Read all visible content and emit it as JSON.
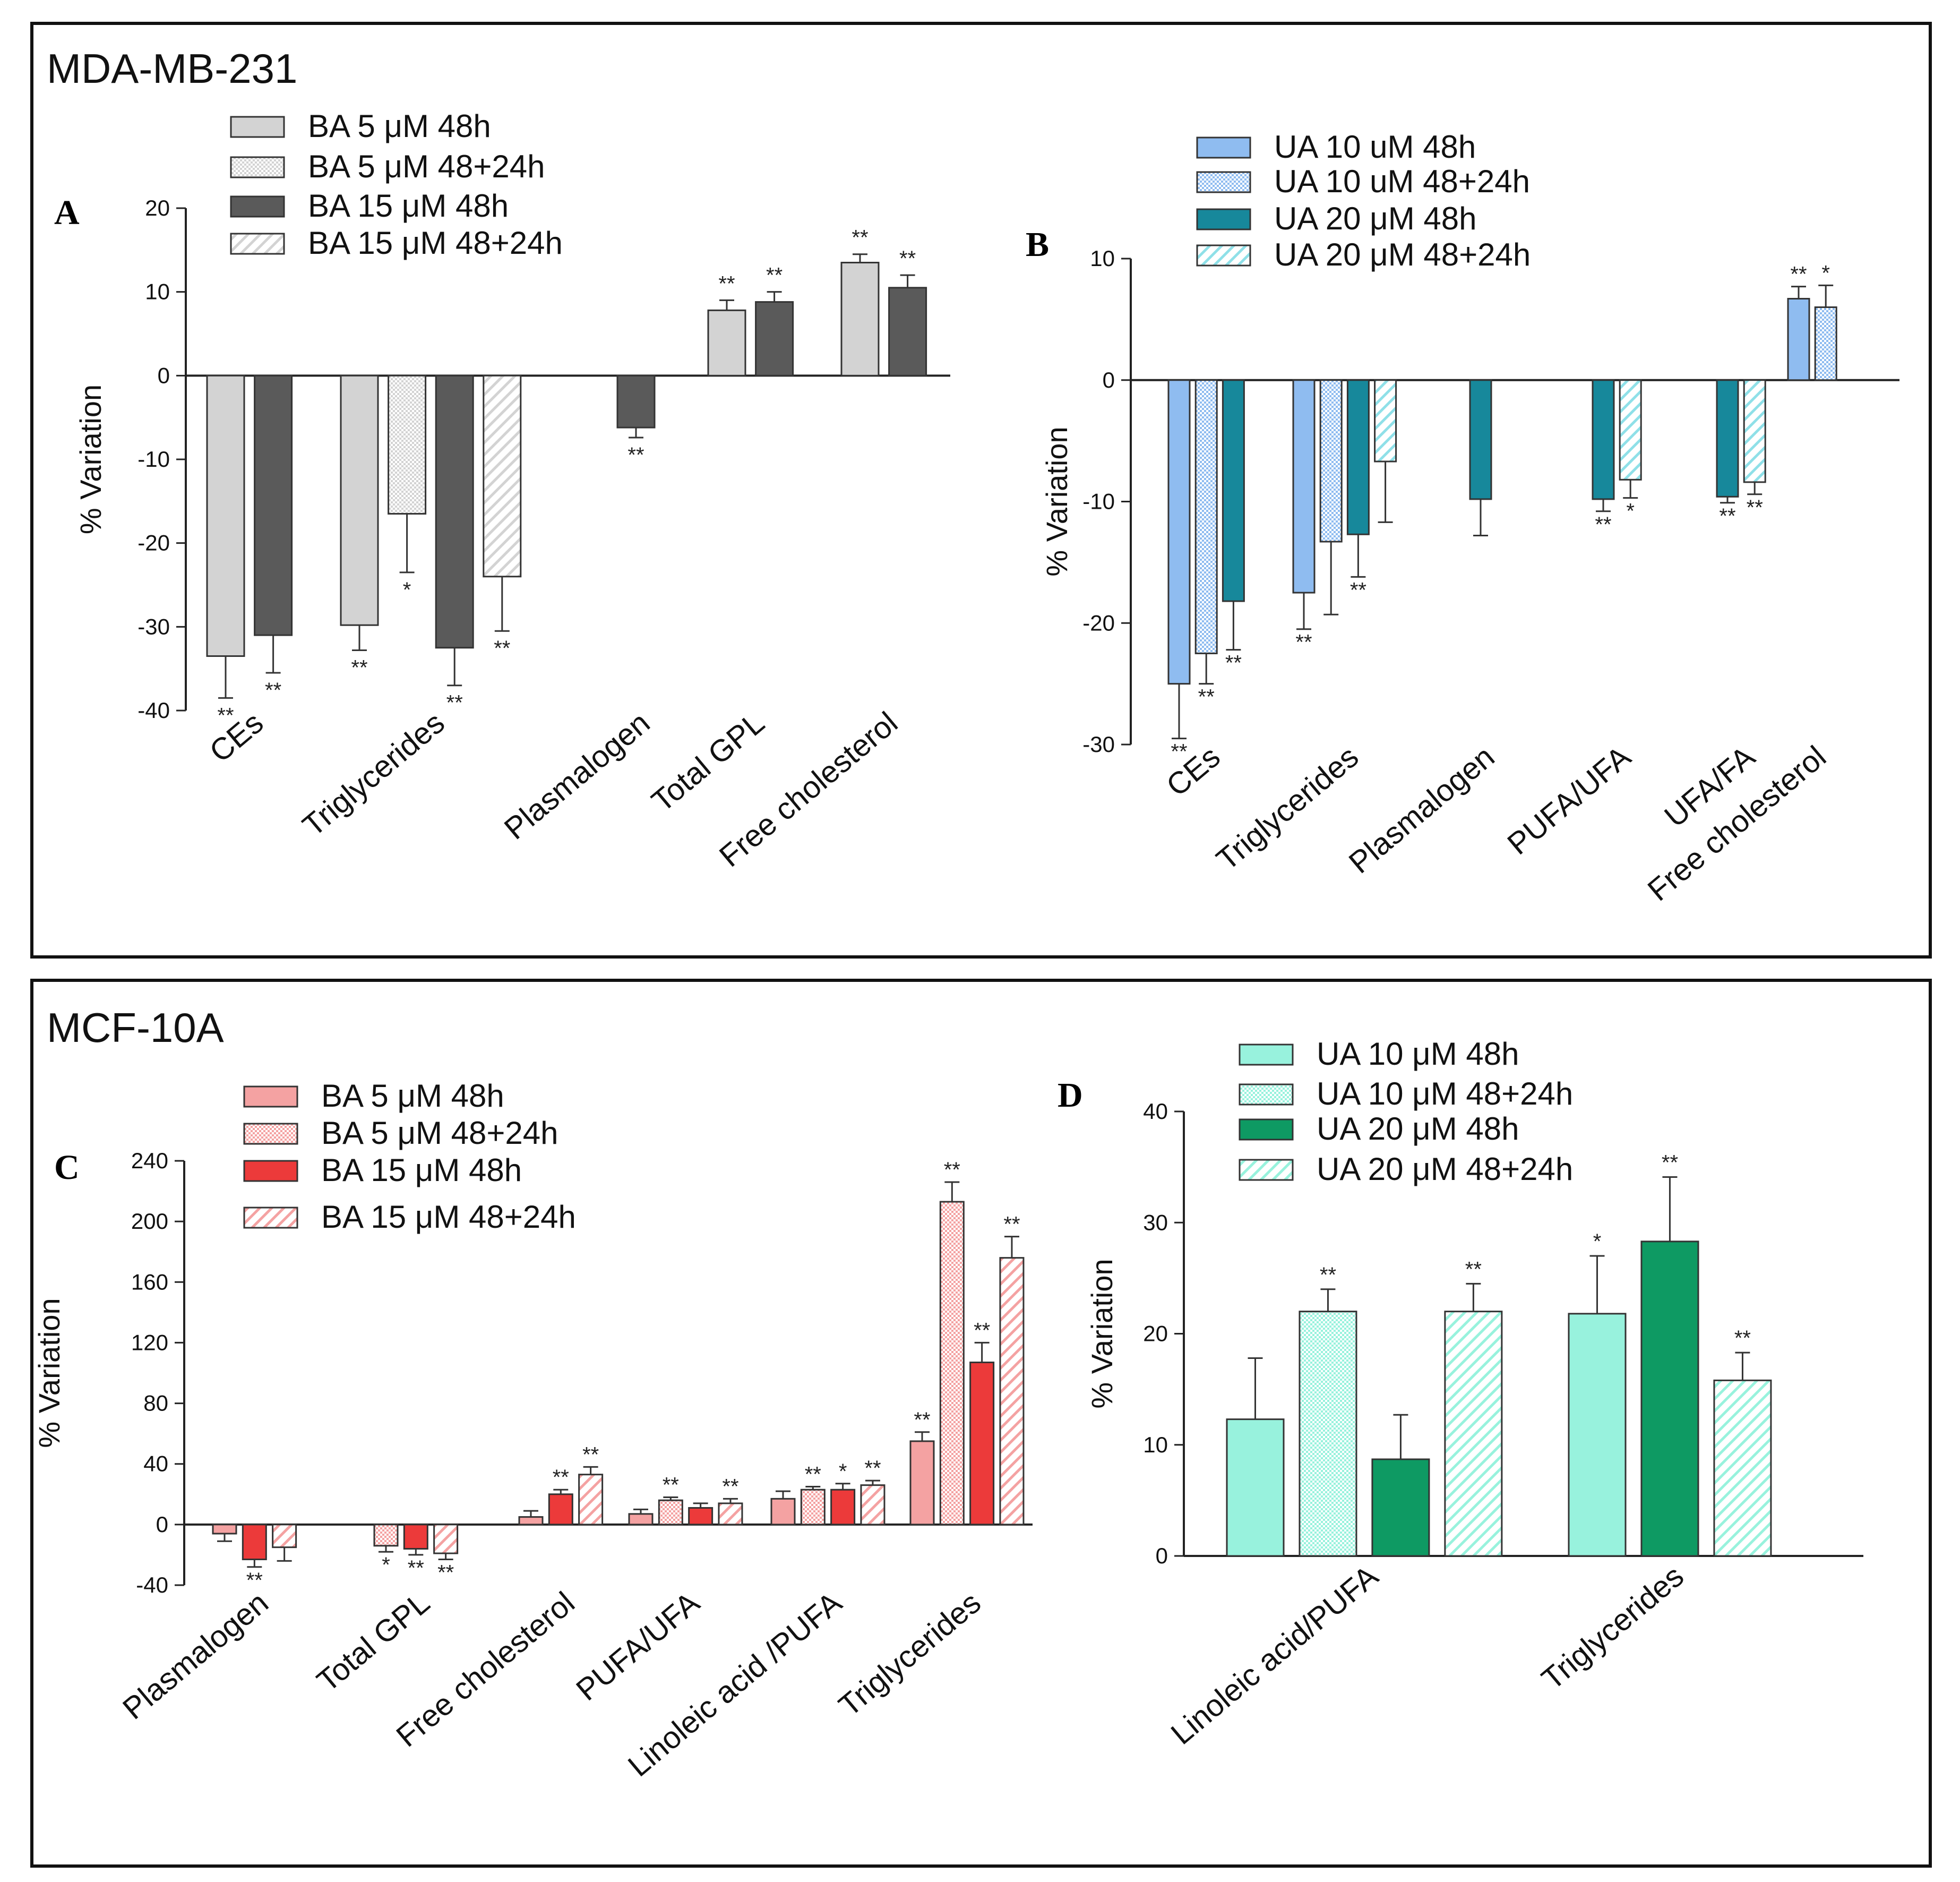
{
  "sections": {
    "top": "MDA-MB-231",
    "bottom": "MCF-10A"
  },
  "colors": {
    "gray_light": "#d3d3d3",
    "gray_dark": "#5a5a5a",
    "blue_light": "#8fbcf0",
    "teal_dark": "#17889b",
    "red_light": "#f4a2a2",
    "red_dark": "#ec3a3a",
    "mint": "#98f2dd",
    "green_dark": "#0e9a63"
  },
  "chart_data": [
    {
      "panel": "A",
      "type": "bar",
      "ylabel": "% Variation",
      "ylim": [
        -40,
        20
      ],
      "yticks": [
        20,
        10,
        0,
        -10,
        -20,
        -30,
        -40
      ],
      "legend": [
        {
          "label": "BA 5 μM 48h",
          "color": "#d3d3d3",
          "pattern": "solid"
        },
        {
          "label": "BA 5 μM 48+24h",
          "color": "#d3d3d3",
          "pattern": "dots"
        },
        {
          "label": "BA 15 μM 48h",
          "color": "#5a5a5a",
          "pattern": "solid"
        },
        {
          "label": "BA 15 μM 48+24h",
          "color": "#d3d3d3",
          "pattern": "hatch"
        }
      ],
      "categories": [
        {
          "label": "CEs",
          "bars": [
            {
              "series": 0,
              "value": -33.5,
              "err": 5,
              "sig": "**"
            },
            {
              "series": 2,
              "value": -31,
              "err": 4.5,
              "sig": "**"
            }
          ]
        },
        {
          "label": "Triglycerides",
          "bars": [
            {
              "series": 0,
              "value": -29.8,
              "err": 3,
              "sig": "**"
            },
            {
              "series": 1,
              "value": -16.5,
              "err": 7,
              "sig": "*"
            },
            {
              "series": 2,
              "value": -32.5,
              "err": 4.5,
              "sig": "**"
            },
            {
              "series": 3,
              "value": -24,
              "err": 6.5,
              "sig": "**"
            }
          ]
        },
        {
          "label": "Plasmalogen",
          "bars": [
            {
              "series": 2,
              "value": -6.2,
              "err": 1.2,
              "sig": "**"
            }
          ]
        },
        {
          "label": "Total GPL",
          "bars": [
            {
              "series": 0,
              "value": 7.8,
              "err": 1.2,
              "sig": "**"
            },
            {
              "series": 2,
              "value": 8.8,
              "err": 1.2,
              "sig": "**"
            }
          ]
        },
        {
          "label": "Free cholesterol",
          "bars": [
            {
              "series": 0,
              "value": 13.5,
              "err": 1,
              "sig": "**"
            },
            {
              "series": 2,
              "value": 10.5,
              "err": 1.5,
              "sig": "**"
            }
          ]
        }
      ]
    },
    {
      "panel": "B",
      "type": "bar",
      "ylabel": "% Variation",
      "ylim": [
        -30,
        10
      ],
      "yticks": [
        10,
        0,
        -10,
        -20,
        -30
      ],
      "legend": [
        {
          "label": "UA 10 uM 48h",
          "color": "#8fbcf0",
          "pattern": "solid"
        },
        {
          "label": "UA 10 uM 48+24h",
          "color": "#8fbcf0",
          "pattern": "dots"
        },
        {
          "label": "UA 20 μM 48h",
          "color": "#17889b",
          "pattern": "solid"
        },
        {
          "label": "UA 20 μM 48+24h",
          "color": "#8fe0e8",
          "pattern": "hatch"
        }
      ],
      "categories": [
        {
          "label": "CEs",
          "bars": [
            {
              "series": 0,
              "value": -25,
              "err": 4.5,
              "sig": "**"
            },
            {
              "series": 1,
              "value": -22.5,
              "err": 2.5,
              "sig": "**"
            },
            {
              "series": 2,
              "value": -18.2,
              "err": 4,
              "sig": "**"
            }
          ]
        },
        {
          "label": "Triglycerides",
          "bars": [
            {
              "series": 0,
              "value": -17.5,
              "err": 3,
              "sig": "**"
            },
            {
              "series": 1,
              "value": -13.3,
              "err": 6,
              "sig": ""
            },
            {
              "series": 2,
              "value": -12.7,
              "err": 3.5,
              "sig": "**"
            },
            {
              "series": 3,
              "value": -6.7,
              "err": 5,
              "sig": ""
            }
          ]
        },
        {
          "label": "Plasmalogen",
          "bars": [
            {
              "series": 2,
              "value": -9.8,
              "err": 3,
              "sig": ""
            }
          ]
        },
        {
          "label": "PUFA/UFA",
          "bars": [
            {
              "series": 2,
              "value": -9.8,
              "err": 1,
              "sig": "**"
            },
            {
              "series": 3,
              "value": -8.2,
              "err": 1.5,
              "sig": "*"
            }
          ]
        },
        {
          "label": "UFA/FA",
          "bars": [
            {
              "series": 2,
              "value": -9.6,
              "err": 0.5,
              "sig": "**"
            },
            {
              "series": 3,
              "value": -8.4,
              "err": 1,
              "sig": "**"
            }
          ]
        },
        {
          "label": "Free cholesterol",
          "bars": [
            {
              "series": 0,
              "value": 6.7,
              "err": 1,
              "sig": "**"
            },
            {
              "series": 1,
              "value": 6,
              "err": 1.8,
              "sig": "*"
            }
          ]
        }
      ]
    },
    {
      "panel": "C",
      "type": "bar",
      "ylabel": "% Variation",
      "ylim": [
        -40,
        240
      ],
      "yticks": [
        240,
        200,
        160,
        120,
        80,
        40,
        0,
        -40
      ],
      "legend": [
        {
          "label": "BA 5 μM 48h",
          "color": "#f4a2a2",
          "pattern": "solid"
        },
        {
          "label": "BA 5 μM 48+24h",
          "color": "#f4a2a2",
          "pattern": "dots"
        },
        {
          "label": "BA 15 μM 48h",
          "color": "#ec3a3a",
          "pattern": "solid"
        },
        {
          "label": "BA 15 μM 48+24h",
          "color": "#f4a2a2",
          "pattern": "hatch"
        }
      ],
      "categories": [
        {
          "label": "Plasmalogen",
          "bars": [
            {
              "series": 0,
              "value": -6,
              "err": 5,
              "sig": ""
            },
            {
              "series": 2,
              "value": -23,
              "err": 5,
              "sig": "**"
            },
            {
              "series": 3,
              "value": -15,
              "err": 9,
              "sig": ""
            }
          ]
        },
        {
          "label": "Total GPL",
          "bars": [
            {
              "series": 1,
              "value": -14,
              "err": 4,
              "sig": "*"
            },
            {
              "series": 2,
              "value": -16,
              "err": 4,
              "sig": "**"
            },
            {
              "series": 3,
              "value": -19,
              "err": 4,
              "sig": "**"
            }
          ]
        },
        {
          "label": "Free cholesterol",
          "bars": [
            {
              "series": 0,
              "value": 5,
              "err": 4,
              "sig": ""
            },
            {
              "series": 2,
              "value": 20,
              "err": 3,
              "sig": "**"
            },
            {
              "series": 3,
              "value": 33,
              "err": 5,
              "sig": "**"
            }
          ]
        },
        {
          "label": "PUFA/UFA",
          "bars": [
            {
              "series": 0,
              "value": 7,
              "err": 3,
              "sig": ""
            },
            {
              "series": 1,
              "value": 16,
              "err": 2,
              "sig": "**"
            },
            {
              "series": 2,
              "value": 11,
              "err": 3,
              "sig": ""
            },
            {
              "series": 3,
              "value": 14,
              "err": 3,
              "sig": "**"
            }
          ]
        },
        {
          "label": "Linoleic acid /PUFA",
          "bars": [
            {
              "series": 0,
              "value": 17,
              "err": 5,
              "sig": ""
            },
            {
              "series": 1,
              "value": 23,
              "err": 2,
              "sig": "**"
            },
            {
              "series": 2,
              "value": 23,
              "err": 4,
              "sig": "*"
            },
            {
              "series": 3,
              "value": 26,
              "err": 3,
              "sig": "**"
            }
          ]
        },
        {
          "label": "Triglycerides",
          "bars": [
            {
              "series": 0,
              "value": 55,
              "err": 6,
              "sig": "**"
            },
            {
              "series": 1,
              "value": 213,
              "err": 13,
              "sig": "**"
            },
            {
              "series": 2,
              "value": 107,
              "err": 13,
              "sig": "**"
            },
            {
              "series": 3,
              "value": 176,
              "err": 14,
              "sig": "**"
            }
          ]
        }
      ]
    },
    {
      "panel": "D",
      "type": "bar",
      "ylabel": "% Variation",
      "ylim": [
        0,
        40
      ],
      "yticks": [
        40,
        30,
        20,
        10,
        0
      ],
      "legend": [
        {
          "label": "UA 10 μM 48h",
          "color": "#98f2dd",
          "pattern": "solid"
        },
        {
          "label": "UA 10 μM 48+24h",
          "color": "#98f2dd",
          "pattern": "dots"
        },
        {
          "label": "UA 20 μM 48h",
          "color": "#0e9a63",
          "pattern": "solid"
        },
        {
          "label": "UA 20 μM 48+24h",
          "color": "#98f2dd",
          "pattern": "hatch"
        }
      ],
      "categories": [
        {
          "label": "Linoleic acid/PUFA",
          "bars": [
            {
              "series": 0,
              "value": 12.3,
              "err": 5.5,
              "sig": ""
            },
            {
              "series": 1,
              "value": 22,
              "err": 2,
              "sig": "**"
            },
            {
              "series": 2,
              "value": 8.7,
              "err": 4,
              "sig": ""
            },
            {
              "series": 3,
              "value": 22,
              "err": 2.5,
              "sig": "**"
            }
          ]
        },
        {
          "label": "Triglycerides",
          "bars": [
            {
              "series": 0,
              "value": 21.8,
              "err": 5.2,
              "sig": "*"
            },
            {
              "series": 2,
              "value": 28.3,
              "err": 5.8,
              "sig": "**"
            },
            {
              "series": 3,
              "value": 15.8,
              "err": 2.5,
              "sig": "**"
            }
          ]
        }
      ]
    }
  ]
}
